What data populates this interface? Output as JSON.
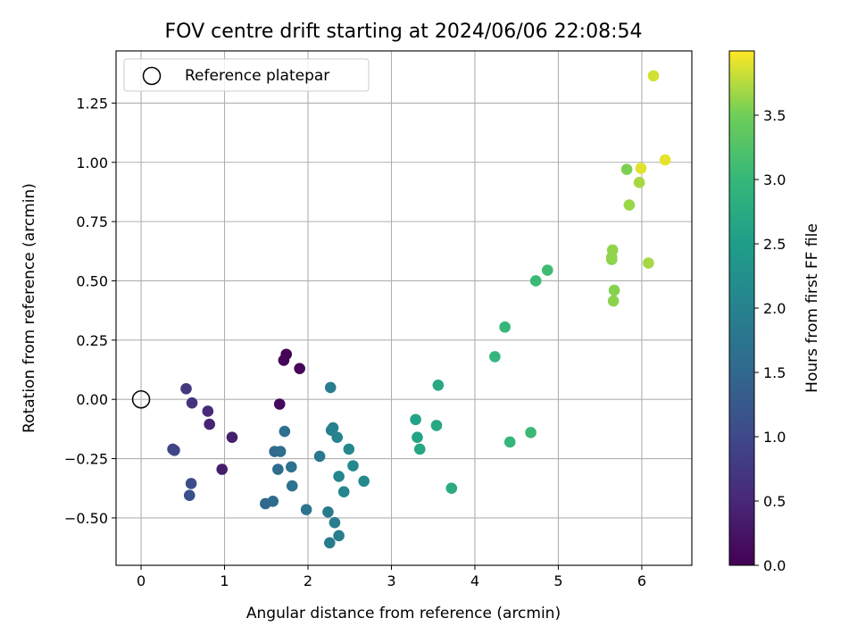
{
  "chart_data": {
    "type": "scatter",
    "title": "FOV centre drift starting at 2024/06/06 22:08:54",
    "xlabel": "Angular distance from reference (arcmin)",
    "ylabel": "Rotation from reference (arcmin)",
    "xlim": [
      -0.3,
      6.6
    ],
    "ylim": [
      -0.7,
      1.47
    ],
    "xticks": [
      "0",
      "1",
      "2",
      "3",
      "4",
      "5",
      "6"
    ],
    "yticks": [
      "−0.50",
      "−0.25",
      "0.00",
      "0.25",
      "0.50",
      "0.75",
      "1.00",
      "1.25"
    ],
    "grid": true,
    "legend": {
      "placement": "top-left",
      "label": "Reference platepar"
    },
    "reference_point": {
      "x": 0,
      "y": 0
    },
    "colorbar": {
      "label": "Hours from first FF file",
      "colormap": "viridis",
      "range": [
        0,
        4.0
      ],
      "ticks": [
        "0.0",
        "0.5",
        "1.0",
        "1.5",
        "2.0",
        "2.5",
        "3.0",
        "3.5"
      ]
    },
    "points": [
      {
        "x": 1.74,
        "y": 0.19,
        "c": 0.02
      },
      {
        "x": 1.71,
        "y": 0.165,
        "c": 0.05
      },
      {
        "x": 1.9,
        "y": 0.13,
        "c": 0.08
      },
      {
        "x": 1.66,
        "y": -0.02,
        "c": 0.12
      },
      {
        "x": 0.97,
        "y": -0.295,
        "c": 0.35
      },
      {
        "x": 1.09,
        "y": -0.16,
        "c": 0.38
      },
      {
        "x": 0.82,
        "y": -0.105,
        "c": 0.45
      },
      {
        "x": 0.8,
        "y": -0.05,
        "c": 0.55
      },
      {
        "x": 0.61,
        "y": -0.015,
        "c": 0.68
      },
      {
        "x": 0.54,
        "y": 0.045,
        "c": 0.75
      },
      {
        "x": 0.38,
        "y": -0.21,
        "c": 0.9
      },
      {
        "x": 0.4,
        "y": -0.215,
        "c": 0.95
      },
      {
        "x": 0.6,
        "y": -0.355,
        "c": 1.05
      },
      {
        "x": 0.58,
        "y": -0.405,
        "c": 1.1
      },
      {
        "x": 1.49,
        "y": -0.44,
        "c": 1.5
      },
      {
        "x": 1.58,
        "y": -0.43,
        "c": 1.55
      },
      {
        "x": 1.6,
        "y": -0.22,
        "c": 1.55
      },
      {
        "x": 1.64,
        "y": -0.295,
        "c": 1.6
      },
      {
        "x": 1.67,
        "y": -0.22,
        "c": 1.62
      },
      {
        "x": 1.72,
        "y": -0.135,
        "c": 1.65
      },
      {
        "x": 1.8,
        "y": -0.285,
        "c": 1.7
      },
      {
        "x": 1.81,
        "y": -0.365,
        "c": 1.72
      },
      {
        "x": 1.98,
        "y": -0.465,
        "c": 1.75
      },
      {
        "x": 2.14,
        "y": -0.24,
        "c": 1.8
      },
      {
        "x": 2.24,
        "y": -0.475,
        "c": 1.85
      },
      {
        "x": 2.26,
        "y": -0.605,
        "c": 1.88
      },
      {
        "x": 2.27,
        "y": 0.05,
        "c": 1.9
      },
      {
        "x": 2.32,
        "y": -0.52,
        "c": 1.9
      },
      {
        "x": 2.37,
        "y": -0.575,
        "c": 1.92
      },
      {
        "x": 2.28,
        "y": -0.13,
        "c": 1.95
      },
      {
        "x": 2.3,
        "y": -0.12,
        "c": 2.0
      },
      {
        "x": 2.35,
        "y": -0.16,
        "c": 2.02
      },
      {
        "x": 2.37,
        "y": -0.325,
        "c": 2.05
      },
      {
        "x": 2.43,
        "y": -0.39,
        "c": 2.08
      },
      {
        "x": 2.49,
        "y": -0.21,
        "c": 2.1
      },
      {
        "x": 2.54,
        "y": -0.28,
        "c": 2.12
      },
      {
        "x": 2.67,
        "y": -0.345,
        "c": 2.15
      },
      {
        "x": 3.29,
        "y": -0.085,
        "c": 2.6
      },
      {
        "x": 3.31,
        "y": -0.16,
        "c": 2.62
      },
      {
        "x": 3.34,
        "y": -0.21,
        "c": 2.65
      },
      {
        "x": 3.54,
        "y": -0.11,
        "c": 2.68
      },
      {
        "x": 3.56,
        "y": 0.06,
        "c": 2.7
      },
      {
        "x": 3.72,
        "y": -0.375,
        "c": 2.75
      },
      {
        "x": 4.24,
        "y": 0.18,
        "c": 2.95
      },
      {
        "x": 4.36,
        "y": 0.305,
        "c": 3.0
      },
      {
        "x": 4.42,
        "y": -0.18,
        "c": 3.0
      },
      {
        "x": 4.67,
        "y": -0.14,
        "c": 3.05
      },
      {
        "x": 4.73,
        "y": 0.5,
        "c": 3.05
      },
      {
        "x": 4.87,
        "y": 0.545,
        "c": 3.1
      },
      {
        "x": 5.64,
        "y": 0.59,
        "c": 3.6
      },
      {
        "x": 5.64,
        "y": 0.6,
        "c": 3.62
      },
      {
        "x": 5.65,
        "y": 0.63,
        "c": 3.62
      },
      {
        "x": 5.66,
        "y": 0.415,
        "c": 3.6
      },
      {
        "x": 5.67,
        "y": 0.46,
        "c": 3.58
      },
      {
        "x": 5.82,
        "y": 0.97,
        "c": 3.55
      },
      {
        "x": 5.85,
        "y": 0.82,
        "c": 3.65
      },
      {
        "x": 5.97,
        "y": 0.915,
        "c": 3.7
      },
      {
        "x": 5.99,
        "y": 0.975,
        "c": 3.9
      },
      {
        "x": 6.08,
        "y": 0.575,
        "c": 3.7
      },
      {
        "x": 6.14,
        "y": 1.365,
        "c": 3.85
      },
      {
        "x": 6.28,
        "y": 1.01,
        "c": 3.92
      }
    ]
  }
}
